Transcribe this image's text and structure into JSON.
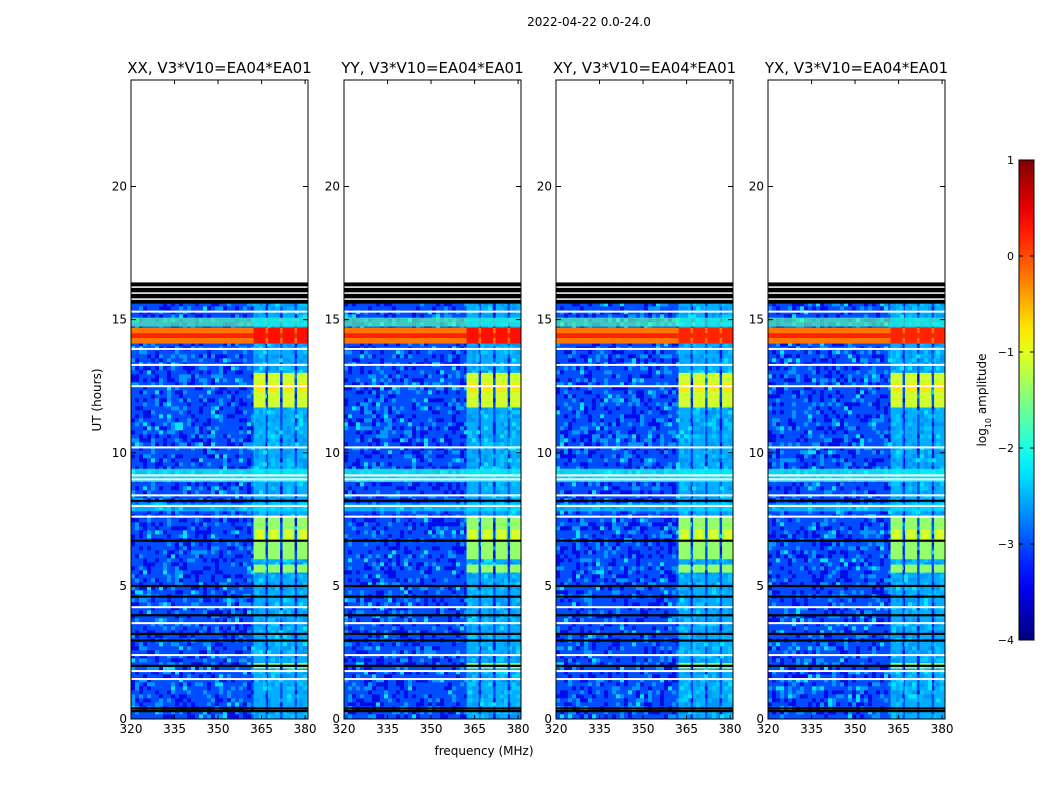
{
  "chart_data": {
    "type": "heatmap",
    "title": "2022-04-22 0.0-24.0",
    "xlabel": "frequency (MHz)",
    "ylabel": "UT (hours)",
    "xlim": [
      320,
      381
    ],
    "ylim": [
      0,
      24
    ],
    "xticks": [
      "320",
      "335",
      "350",
      "365",
      "380"
    ],
    "yticks": [
      "0",
      "5",
      "10",
      "15",
      "20"
    ],
    "colormap": "jet",
    "colorbar": {
      "label": "log10 amplitude",
      "label_base": "log",
      "label_sub": "10",
      "label_rest": " amplitude",
      "range": [
        -4,
        1
      ],
      "ticks": [
        "−4",
        "−3",
        "−2",
        "−1",
        "0",
        "1"
      ]
    },
    "data_end_hours": 16.4,
    "panels": [
      {
        "title": "XX, V3*V10=EA04*EA01",
        "background_level": -3.0,
        "peak_level": 0.3
      },
      {
        "title": "YY, V3*V10=EA04*EA01",
        "background_level": -3.0,
        "peak_level": 0.3
      },
      {
        "title": "XY, V3*V10=EA04*EA01",
        "background_level": -3.0,
        "peak_level": 0.2
      },
      {
        "title": "YX, V3*V10=EA04*EA01",
        "background_level": -3.0,
        "peak_level": 0.2
      }
    ],
    "rfi_channels_mhz": [
      365,
      370,
      375,
      380
    ],
    "features": [
      {
        "name": "strong broadband",
        "ut_start": 14.1,
        "ut_end": 14.7,
        "level": -0.5
      },
      {
        "name": "rfi burst",
        "ut_start": 11.7,
        "ut_end": 13.0,
        "level": -1.1
      },
      {
        "name": "rfi burst",
        "ut_start": 6.0,
        "ut_end": 7.6,
        "level": -1.4
      }
    ],
    "flagged_white_hours": [
      9.0,
      9.15,
      8.4,
      8.0,
      7.6,
      12.5,
      13.3,
      13.9,
      10.2,
      15.3,
      3.6,
      2.4,
      1.8,
      1.5,
      4.2
    ],
    "flagged_black_hours": [
      5.0,
      4.6,
      3.9,
      3.2,
      2.95,
      2.0,
      0.4,
      0.3,
      6.7,
      8.2
    ],
    "black_band_hours": [
      15.6,
      16.4
    ]
  }
}
